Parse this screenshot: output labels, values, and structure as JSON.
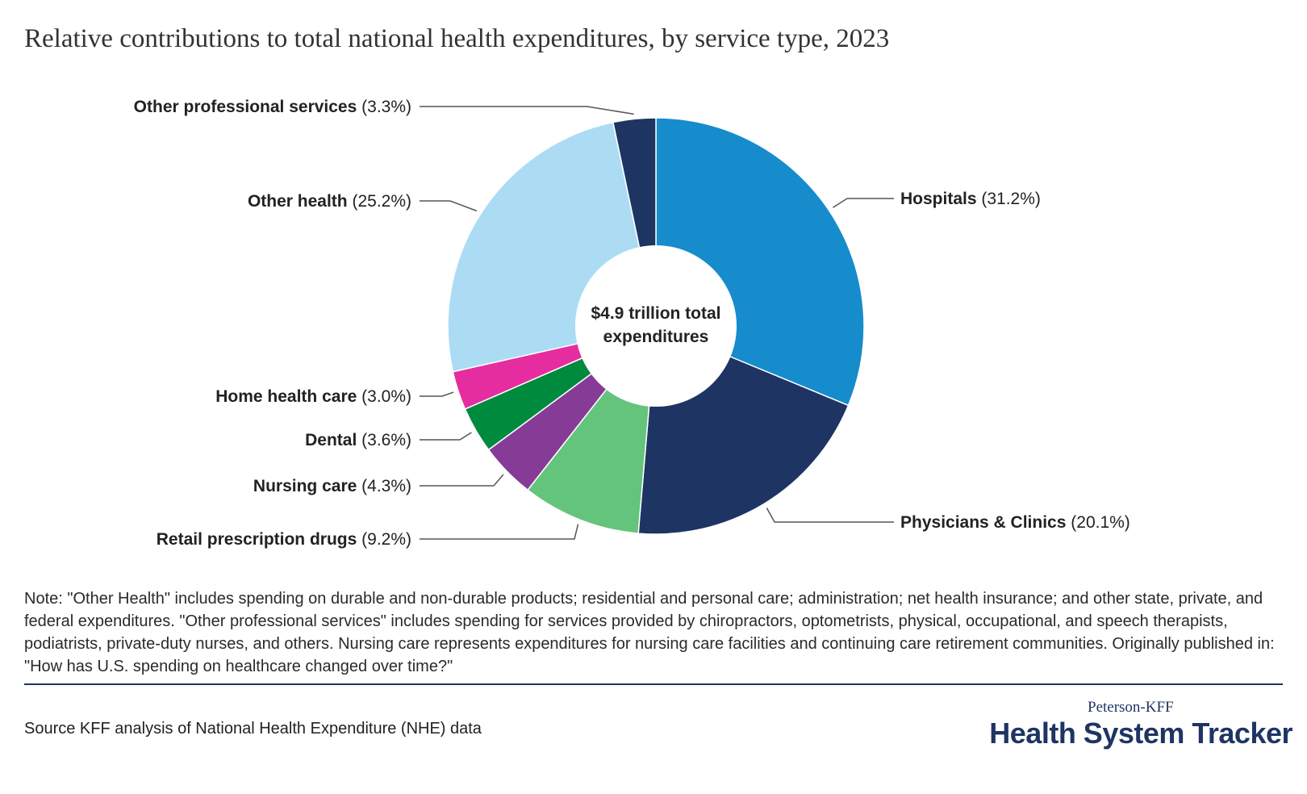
{
  "colors": {
    "hospitals": "#168ccd",
    "physicians": "#1e3563",
    "retail_drugs": "#64c47c",
    "nursing": "#863c96",
    "dental": "#008a3e",
    "home_health": "#e62d9f",
    "other_health": "#acdcf4",
    "other_professional": "#1e3563",
    "leader": "#555555"
  },
  "chart_data": {
    "type": "pie",
    "variant": "donut",
    "title": "Relative contributions to total national health expenditures, by service type, 2023",
    "center_label": [
      "$4.9 trillion total",
      "expenditures"
    ],
    "slices": [
      {
        "name": "Hospitals",
        "value": 31.2,
        "value_label": "(31.2%)",
        "color": "#168ccd"
      },
      {
        "name": "Physicians & Clinics",
        "value": 20.1,
        "value_label": "(20.1%)",
        "color": "#1e3563"
      },
      {
        "name": "Retail prescription drugs",
        "value": 9.2,
        "value_label": "(9.2%)",
        "color": "#64c47c"
      },
      {
        "name": "Nursing care",
        "value": 4.3,
        "value_label": "(4.3%)",
        "color": "#863c96"
      },
      {
        "name": "Dental",
        "value": 3.6,
        "value_label": "(3.6%)",
        "color": "#008a3e"
      },
      {
        "name": "Home health care",
        "value": 3.0,
        "value_label": "(3.0%)",
        "color": "#e62d9f"
      },
      {
        "name": "Other health",
        "value": 25.2,
        "value_label": "(25.2%)",
        "color": "#acdcf4"
      },
      {
        "name": "Other professional services",
        "value": 3.3,
        "value_label": "(3.3%)",
        "color": "#1e3563"
      }
    ]
  },
  "note": "Note: \"Other Health\" includes spending on durable and non-durable products; residential and personal care; administration; net health insurance; and other state, private, and federal expenditures. \"Other professional services\" includes spending for services provided by  chiropractors, optometrists, physical, occupational, and speech therapists, podiatrists, private-duty nurses, and others. Nursing care represents expenditures  for nursing care facilities  and continuing care  retirement communities. Originally published in: \"How has U.S. spending on healthcare changed over time?\"",
  "source": "Source KFF analysis of National Health Expenditure (NHE) data",
  "logo": {
    "small": "Peterson-KFF",
    "big": "Health System Tracker"
  }
}
